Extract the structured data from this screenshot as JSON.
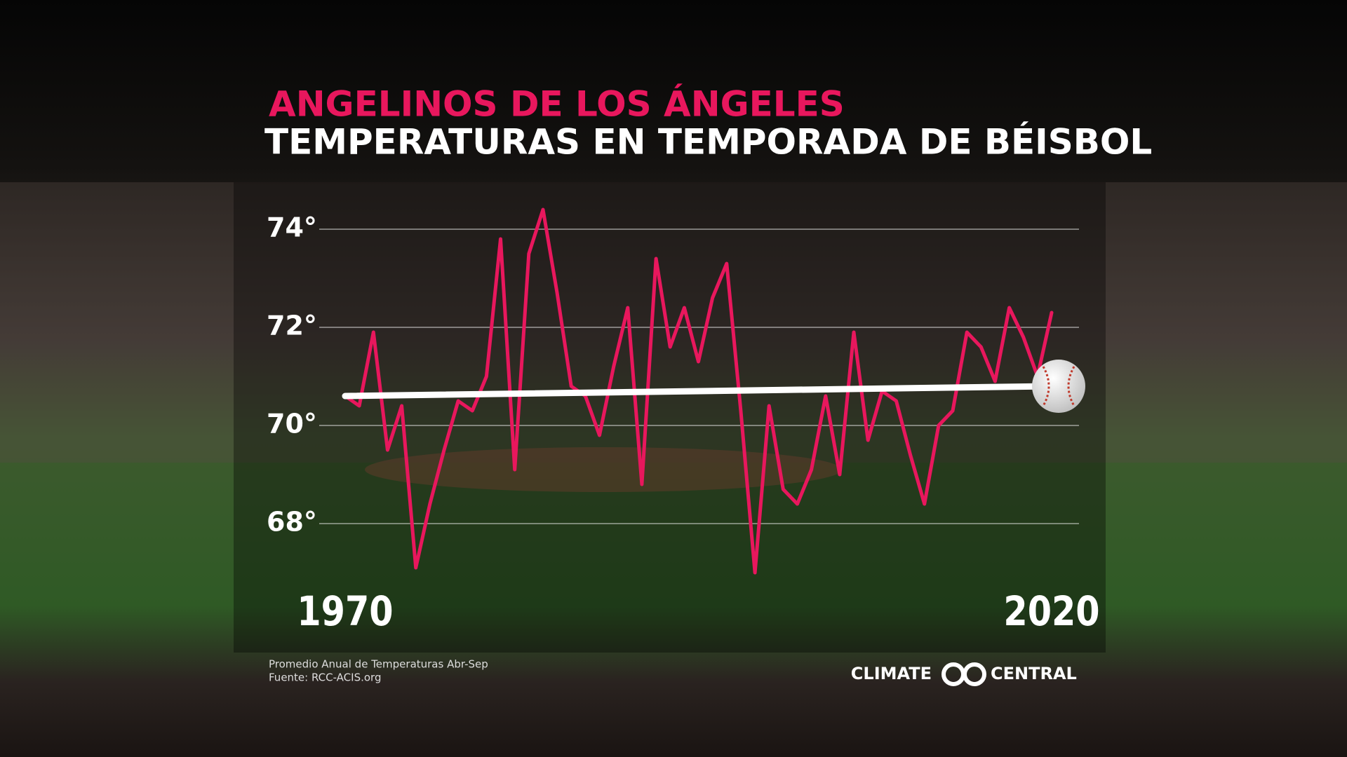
{
  "chart_data": {
    "type": "line",
    "title": "ANGELINOS DE LOS ÁNGELES",
    "subtitle": "TEMPERATURAS EN TEMPORADA DE BÉISBOL",
    "x": [
      1970,
      1971,
      1972,
      1973,
      1974,
      1975,
      1976,
      1977,
      1978,
      1979,
      1980,
      1981,
      1982,
      1983,
      1984,
      1985,
      1986,
      1987,
      1988,
      1989,
      1990,
      1991,
      1992,
      1993,
      1994,
      1995,
      1996,
      1997,
      1998,
      1999,
      2000,
      2001,
      2002,
      2003,
      2004,
      2005,
      2006,
      2007,
      2008,
      2009,
      2010,
      2011,
      2012,
      2013,
      2014,
      2015,
      2016,
      2017,
      2018,
      2019,
      2020
    ],
    "series": [
      {
        "name": "Promedio Anual de Temperaturas Abr-Sep",
        "color": "#e8175d",
        "values": [
          70.6,
          70.4,
          71.9,
          69.5,
          70.4,
          67.1,
          68.4,
          69.5,
          70.5,
          70.3,
          71.0,
          73.8,
          69.1,
          73.5,
          74.4,
          72.7,
          70.8,
          70.6,
          69.8,
          71.2,
          72.4,
          68.8,
          73.4,
          71.6,
          72.4,
          71.3,
          72.6,
          73.3,
          70.3,
          67.0,
          70.4,
          68.7,
          68.4,
          69.1,
          70.6,
          69.0,
          71.9,
          69.7,
          70.7,
          70.5,
          69.4,
          68.4,
          70.0,
          70.3,
          71.9,
          71.6,
          70.9,
          72.4,
          71.8,
          71.0,
          72.3
        ]
      }
    ],
    "trend": {
      "x": [
        1970,
        2020
      ],
      "values": [
        70.6,
        70.8
      ],
      "color": "#ffffff"
    },
    "xlim": [
      1970,
      2020
    ],
    "xticks": [
      1970,
      2020
    ],
    "ylim": [
      67,
      75
    ],
    "yticks": [
      {
        "value": 68,
        "label": "68°"
      },
      {
        "value": 70,
        "label": "70°"
      },
      {
        "value": 72,
        "label": "72°"
      },
      {
        "value": 74,
        "label": "74°"
      }
    ],
    "grid": true,
    "notes": [
      "Promedio Anual de Temperaturas Abr-Sep",
      "Fuente: RCC-ACIS.org"
    ],
    "logo": [
      "CLIMATE",
      "CENTRAL"
    ]
  }
}
